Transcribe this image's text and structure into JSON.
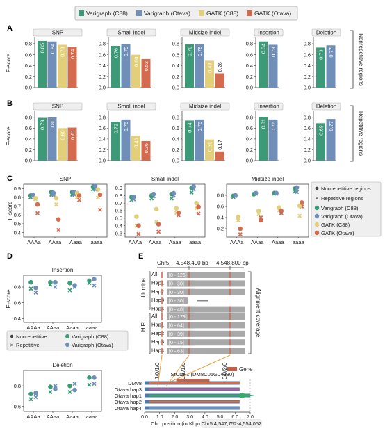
{
  "legend": {
    "items": [
      {
        "label": "Varigraph (C88)",
        "color": "#3c9a78"
      },
      {
        "label": "Varigraph (Otava)",
        "color": "#6f8fb9"
      },
      {
        "label": "GATK (C88)",
        "color": "#e3cf7a"
      },
      {
        "label": "GATK (Otava)",
        "color": "#d46a4e"
      }
    ]
  },
  "panels": {
    "A": {
      "letter": "A",
      "side_label": "Nonrepetitive regions"
    },
    "B": {
      "letter": "B",
      "side_label": "Repetitive regions"
    },
    "C": {
      "letter": "C"
    },
    "D": {
      "letter": "D"
    },
    "E": {
      "letter": "E"
    }
  },
  "dot_legend": {
    "nonrep": "Nonrepetitive regions",
    "rep": "Repetitive regions",
    "short_nonrep": "Nonrepetitive",
    "short_rep": "Repetitive",
    "varigraph_c88": "Varigraph (C88)",
    "varigraph_otava": "Varigraph (Otava)",
    "gatk_c88": "GATK (C88)",
    "gatk_otava": "GATK (Otava)"
  },
  "panel_e": {
    "chr": "Chr5",
    "pos1": "4,548,400 bp",
    "pos2": "4,548,800 bp",
    "illumina": "Illumina",
    "hifi": "HiFi",
    "coverage_label": "Alignment coverage",
    "illumina_rows": [
      {
        "label": "All",
        "range": "[0 - 126]"
      },
      {
        "label": "Hap1",
        "range": "[0 - 30]"
      },
      {
        "label": "Hap2",
        "range": "[0 - 30]"
      },
      {
        "label": "Hap3",
        "range": "[0 - 30]"
      },
      {
        "label": "Hap4",
        "range": "[0 - 40]"
      }
    ],
    "hifi_rows": [
      {
        "label": "All",
        "range": "[0 - 179]"
      },
      {
        "label": "Hap1",
        "range": "[0 - 64]"
      },
      {
        "label": "Hap2",
        "range": "[0 - 39]"
      },
      {
        "label": "Hap3",
        "range": "[0 - 15]"
      },
      {
        "label": "Hap4",
        "range": "[0 - 63]"
      }
    ],
    "genotypes": [
      "1/0/1/0",
      "0/1/1/0",
      "0/0/2/0"
    ],
    "gene_legend": "Gene",
    "gene_name": "StCDF1 (DM8C05G04930)",
    "haplotypes": [
      "DMv8",
      "Otava hap3",
      "Otava hap1",
      "Otava hap2",
      "Otava hap4"
    ],
    "axis_ticks": [
      "0.0",
      "1.0",
      "2.0",
      "3.0",
      "4.0",
      "5.0",
      "6.0",
      "7.0"
    ],
    "axis_label": "Chr. position (in Kbp)",
    "region_label": "Chr5:4,547,752-4,554,052"
  },
  "chart_data": [
    {
      "panel": "A",
      "type": "bar",
      "ylabel": "F-score",
      "ylim": [
        0,
        0.9
      ],
      "yticks": [
        "0.0",
        "0.2",
        "0.4",
        "0.6",
        "0.8"
      ],
      "series_names": [
        "Varigraph (C88)",
        "Varigraph (Otava)",
        "GATK (C88)",
        "GATK (Otava)"
      ],
      "subplots": [
        {
          "title": "SNP",
          "values": [
            0.85,
            0.84,
            0.78,
            0.74
          ],
          "labels": [
            "0.85",
            "0.84",
            "0.78",
            "0.74"
          ]
        },
        {
          "title": "Small indel",
          "values": [
            0.76,
            0.79,
            0.6,
            0.52
          ],
          "labels": [
            "0.76",
            "0.79",
            "0.60",
            "0.52"
          ]
        },
        {
          "title": "Midsize indel",
          "values": [
            0.79,
            0.79,
            0.49,
            0.26
          ],
          "labels": [
            "0.79",
            "0.79",
            "0.49",
            "0.26"
          ]
        },
        {
          "title": "Insertion",
          "values": [
            0.84,
            0.78
          ],
          "labels": [
            "0.84",
            "0.78"
          ]
        },
        {
          "title": "Deletion",
          "values": [
            0.73,
            0.77
          ],
          "labels": [
            "0.73",
            "0.77"
          ]
        }
      ]
    },
    {
      "panel": "B",
      "type": "bar",
      "ylabel": "F-score",
      "ylim": [
        0,
        0.9
      ],
      "yticks": [
        "0.0",
        "0.2",
        "0.4",
        "0.6",
        "0.8"
      ],
      "series_names": [
        "Varigraph (C88)",
        "Varigraph (Otava)",
        "GATK (C88)",
        "GATK (Otava)"
      ],
      "subplots": [
        {
          "title": "SNP",
          "values": [
            0.79,
            0.8,
            0.6,
            0.61
          ],
          "labels": [
            "0.79",
            "0.80",
            "0.60",
            "0.61"
          ]
        },
        {
          "title": "Small indel",
          "values": [
            0.72,
            0.76,
            0.46,
            0.36
          ],
          "labels": [
            "0.72",
            "0.76",
            "0.46",
            "0.36"
          ]
        },
        {
          "title": "Midsize indel",
          "values": [
            0.74,
            0.76,
            0.39,
            0.17
          ],
          "labels": [
            "0.74",
            "0.76",
            "0.39",
            "0.17"
          ]
        },
        {
          "title": "Insertion",
          "values": [
            0.81,
            0.76
          ],
          "labels": [
            "0.81",
            "0.76"
          ]
        },
        {
          "title": "Deletion",
          "values": [
            0.69,
            0.77
          ],
          "labels": [
            "0.69",
            "0.77"
          ]
        }
      ]
    },
    {
      "panel": "C",
      "type": "scatter",
      "ylabel": "F-score",
      "categories": [
        "AAAa",
        "AAaa",
        "Aaaa",
        "aaaa"
      ],
      "subplots": [
        {
          "title": "SNP",
          "ylim": [
            0.35,
            0.95
          ],
          "yticks": [
            0.4,
            0.5,
            0.6,
            0.7,
            0.8,
            0.9
          ],
          "nonrep": [
            [
              0.82,
              0.83,
              0.79,
              0.72
            ],
            [
              0.86,
              0.85,
              0.79,
              0.55
            ],
            [
              0.86,
              0.86,
              0.85,
              0.82
            ],
            [
              0.92,
              0.93,
              0.89,
              0.83
            ]
          ],
          "rep": [
            [
              0.8,
              0.81,
              0.78,
              0.62
            ],
            [
              0.83,
              0.83,
              0.72,
              0.43
            ],
            [
              0.83,
              0.83,
              0.8,
              0.77
            ],
            [
              0.89,
              0.89,
              0.8,
              0.66
            ]
          ]
        },
        {
          "title": "Small indel",
          "ylim": [
            0.25,
            0.95
          ],
          "yticks": [
            0.3,
            0.4,
            0.5,
            0.6,
            0.7,
            0.8,
            0.9
          ],
          "nonrep": [
            [
              0.78,
              0.78,
              0.52,
              0.4
            ],
            [
              0.8,
              0.82,
              0.62,
              0.42
            ],
            [
              0.82,
              0.83,
              0.63,
              0.57
            ],
            [
              0.9,
              0.92,
              0.7,
              0.65
            ]
          ],
          "rep": [
            [
              0.74,
              0.75,
              0.4,
              0.29
            ],
            [
              0.76,
              0.79,
              0.45,
              0.32
            ],
            [
              0.76,
              0.8,
              0.57,
              0.54
            ],
            [
              0.84,
              0.88,
              0.63,
              0.56
            ]
          ]
        },
        {
          "title": "Midsize indel",
          "ylim": [
            0.05,
            1.0
          ],
          "yticks": [
            0.2,
            0.4,
            0.6,
            0.8
          ],
          "nonrep": [
            [
              0.79,
              0.8,
              0.41,
              0.2
            ],
            [
              0.82,
              0.84,
              0.52,
              0.35
            ],
            [
              0.84,
              0.84,
              0.58,
              0.52
            ],
            [
              0.92,
              0.94,
              0.61,
              0.67
            ]
          ],
          "rep": [
            [
              0.77,
              0.79,
              0.35,
              0.1
            ],
            [
              0.82,
              0.83,
              0.46,
              0.4
            ],
            [
              0.83,
              0.83,
              0.53,
              0.48
            ],
            [
              0.87,
              0.86,
              0.43,
              0.6
            ]
          ]
        }
      ]
    },
    {
      "panel": "D",
      "type": "scatter",
      "ylabel": "F-score",
      "categories": [
        "AAAa",
        "AAaa",
        "Aaaa",
        "aaaa"
      ],
      "subplots": [
        {
          "title": "Insertion",
          "ylim": [
            0.35,
            0.95
          ],
          "yticks": [
            0.4,
            0.6,
            0.8
          ],
          "nonrep": [
            [
              0.86,
              0.79
            ],
            [
              0.86,
              0.86
            ],
            [
              0.85,
              0.82
            ],
            [
              0.88,
              0.9
            ]
          ],
          "rep": [
            [
              0.78,
              0.73
            ],
            [
              0.83,
              0.8
            ],
            [
              0.76,
              0.8
            ],
            [
              0.85,
              0.82
            ]
          ]
        },
        {
          "title": "Deletion",
          "ylim": [
            0.55,
            0.95
          ],
          "yticks": [
            0.6,
            0.8
          ],
          "nonrep": [
            [
              0.72,
              0.73
            ],
            [
              0.79,
              0.77
            ],
            [
              0.8,
              0.76
            ],
            [
              0.88,
              0.88
            ]
          ],
          "rep": [
            [
              0.67,
              0.69
            ],
            [
              0.74,
              0.8
            ],
            [
              0.74,
              0.82
            ],
            [
              0.81,
              0.82
            ]
          ]
        }
      ]
    }
  ]
}
